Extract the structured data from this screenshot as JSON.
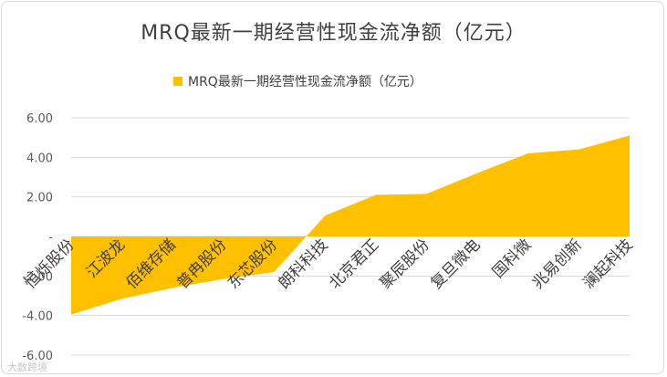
{
  "chart_data": {
    "type": "area",
    "title": "MRQ最新一期经营性现金流净额（亿元）",
    "legend": {
      "placement": "top",
      "entries": [
        "MRQ最新一期经营性现金流净额（亿元）"
      ]
    },
    "categories": [
      "恒烁股份",
      "江波龙",
      "佰维存储",
      "普冉股份",
      "东芯股份",
      "朗科科技",
      "北京君正",
      "聚辰股份",
      "复旦微电",
      "国科微",
      "兆易创新",
      "澜起科技"
    ],
    "series": [
      {
        "name": "MRQ最新一期经营性现金流净额（亿元）",
        "color": "#ffc000",
        "values": [
          -3.95,
          -3.15,
          -2.6,
          -2.15,
          -1.8,
          1.05,
          2.1,
          2.15,
          3.2,
          4.2,
          4.4,
          5.1
        ]
      }
    ],
    "ylim": [
      -6,
      6
    ],
    "yticks": [
      6,
      4,
      2,
      0,
      -2,
      -4,
      -6
    ],
    "ytick_labels": [
      "6.00",
      "4.00",
      "2.00",
      "-",
      "-2.00",
      "-4.00",
      "-6.00"
    ],
    "grid": true
  },
  "watermark": "大数跨境"
}
